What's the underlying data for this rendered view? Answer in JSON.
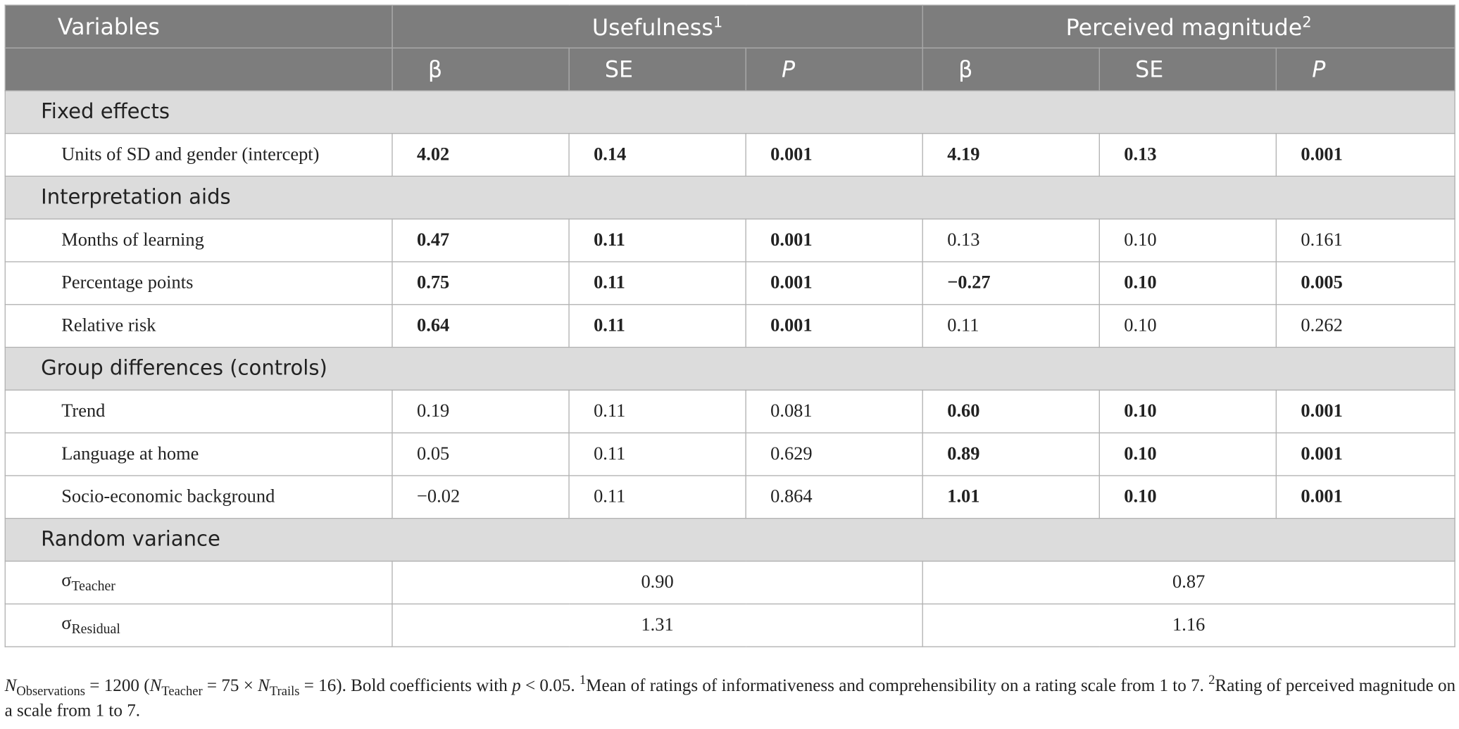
{
  "header": {
    "columns": [
      {
        "text": "Variables"
      },
      {
        "text": "Usefulness",
        "sup": "1"
      },
      {
        "text": "Perceived magnitude",
        "sup": "2"
      }
    ],
    "subheader": [
      {
        "text": "β"
      },
      {
        "text": "SE"
      },
      {
        "text": "P",
        "italic": true
      },
      {
        "text": "β"
      },
      {
        "text": "SE"
      },
      {
        "text": "P",
        "italic": true
      }
    ]
  },
  "sections": [
    {
      "title": "Fixed effects",
      "rows": [
        {
          "label": "Units of SD and gender (intercept)",
          "cells": [
            "4.02",
            "0.14",
            "0.001",
            "4.19",
            "0.13",
            "0.001"
          ],
          "bold": [
            true,
            true,
            true,
            true,
            true,
            true
          ]
        }
      ]
    },
    {
      "title": "Interpretation aids",
      "rows": [
        {
          "label": "Months of learning",
          "cells": [
            "0.47",
            "0.11",
            "0.001",
            "0.13",
            "0.10",
            "0.161"
          ],
          "bold": [
            true,
            true,
            true,
            false,
            false,
            false
          ]
        },
        {
          "label": "Percentage points",
          "cells": [
            "0.75",
            "0.11",
            "0.001",
            "−0.27",
            "0.10",
            "0.005"
          ],
          "bold": [
            true,
            true,
            true,
            true,
            true,
            true
          ]
        },
        {
          "label": "Relative risk",
          "cells": [
            "0.64",
            "0.11",
            "0.001",
            "0.11",
            "0.10",
            "0.262"
          ],
          "bold": [
            true,
            true,
            true,
            false,
            false,
            false
          ]
        }
      ]
    },
    {
      "title": "Group differences (controls)",
      "rows": [
        {
          "label": "Trend",
          "cells": [
            "0.19",
            "0.11",
            "0.081",
            "0.60",
            "0.10",
            "0.001"
          ],
          "bold": [
            false,
            false,
            false,
            true,
            true,
            true
          ]
        },
        {
          "label": "Language at home",
          "cells": [
            "0.05",
            "0.11",
            "0.629",
            "0.89",
            "0.10",
            "0.001"
          ],
          "bold": [
            false,
            false,
            false,
            true,
            true,
            true
          ]
        },
        {
          "label": "Socio-economic background",
          "cells": [
            "−0.02",
            "0.11",
            "0.864",
            "1.01",
            "0.10",
            "0.001"
          ],
          "bold": [
            false,
            false,
            false,
            true,
            true,
            true
          ]
        }
      ]
    },
    {
      "title": "Random variance",
      "rows": [
        {
          "label": "σ",
          "label_sub": "Teacher",
          "cells": [
            "0.90",
            "0.87"
          ],
          "span": 3
        },
        {
          "label": "σ",
          "label_sub": "Residual",
          "cells": [
            "1.31",
            "1.16"
          ],
          "span": 3
        }
      ]
    }
  ],
  "footnote": [
    {
      "text": "N",
      "style": "italic"
    },
    {
      "text": "Observations",
      "style": "sub"
    },
    {
      "text": " = 1200 ("
    },
    {
      "text": "N",
      "style": "italic"
    },
    {
      "text": "Teacher",
      "style": "sub"
    },
    {
      "text": " = 75 × "
    },
    {
      "text": "N",
      "style": "italic"
    },
    {
      "text": "Trails",
      "style": "sub"
    },
    {
      "text": " = 16). Bold coefficients with "
    },
    {
      "text": "p",
      "style": "italic"
    },
    {
      "text": " < 0.05. "
    },
    {
      "text": "1",
      "style": "sup"
    },
    {
      "text": "Mean of ratings of informativeness and comprehensibility on a rating scale from 1 to 7. "
    },
    {
      "text": "2",
      "style": "sup"
    },
    {
      "text": "Rating of perceived magnitude on a scale from 1 to 7."
    }
  ]
}
